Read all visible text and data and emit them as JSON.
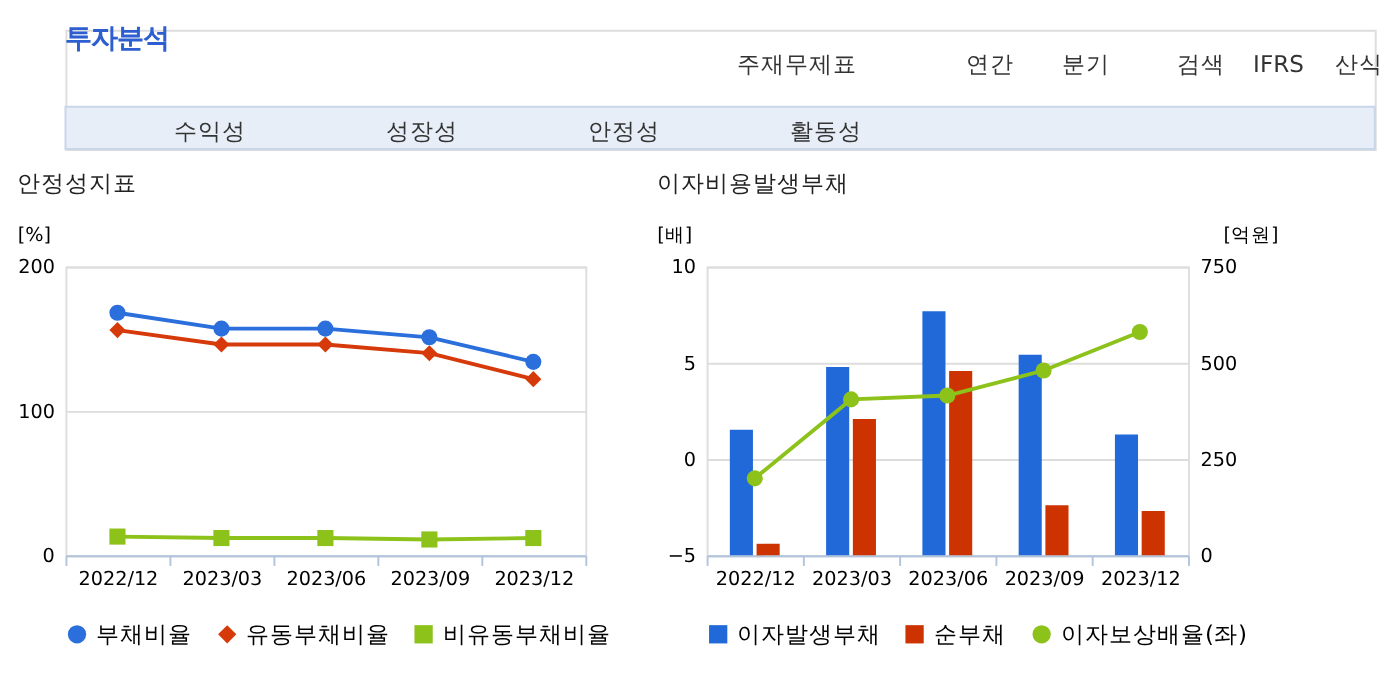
{
  "chart_data": [
    {
      "type": "other",
      "title": "투자분석",
      "annotations": [
        "주재무제표",
        "연간",
        "분기",
        "검색",
        "IFRS",
        "산식",
        "수익성",
        "성장성",
        "안정성",
        "활동성"
      ]
    },
    {
      "type": "line",
      "title": "안정성지표",
      "ylabel": "[%]",
      "categories": [
        "2022/12",
        "2023/03",
        "2023/06",
        "2023/09",
        "2023/12"
      ],
      "ylim": [
        0,
        200
      ],
      "yticks": [
        0,
        100,
        200
      ],
      "grid": "y",
      "legend": "bottom",
      "line_style": "solid",
      "series": [
        {
          "name": "부채비율",
          "color": "#2a6fdb",
          "marker": "circle",
          "values": [
            168,
            157,
            157,
            151,
            134
          ]
        },
        {
          "name": "유동부채비율",
          "color": "#d63a0a",
          "marker": "diamond",
          "values": [
            156,
            146,
            146,
            140,
            122
          ]
        },
        {
          "name": "비유동부채비율",
          "color": "#8cc21a",
          "marker": "square",
          "values": [
            13,
            12,
            12,
            11,
            12
          ]
        }
      ]
    },
    {
      "type": "bar",
      "title": "이자비용발생부채",
      "ylabel": "[배]",
      "y2label": "[억원]",
      "categories": [
        "2022/12",
        "2023/03",
        "2023/06",
        "2023/09",
        "2023/12"
      ],
      "ylim": [
        -5,
        10
      ],
      "yticks": [
        -5,
        0,
        5,
        10
      ],
      "y2lim": [
        0,
        750
      ],
      "y2ticks": [
        0,
        250,
        500,
        750
      ],
      "grid": "y",
      "legend": "bottom",
      "series": [
        {
          "name": "이자발생부채",
          "color": "#2169d9",
          "axis": "y2",
          "values": [
            326,
            489,
            634,
            521,
            314
          ]
        },
        {
          "name": "순부채",
          "color": "#cc3300",
          "axis": "y2",
          "values": [
            30,
            354,
            479,
            130,
            115
          ]
        },
        {
          "name": "이자보상배율(좌)",
          "type": "line",
          "marker": "circle",
          "color": "#8cc21a",
          "axis": "y",
          "values": [
            -1.0,
            3.1,
            3.3,
            4.6,
            6.6
          ]
        }
      ]
    }
  ]
}
